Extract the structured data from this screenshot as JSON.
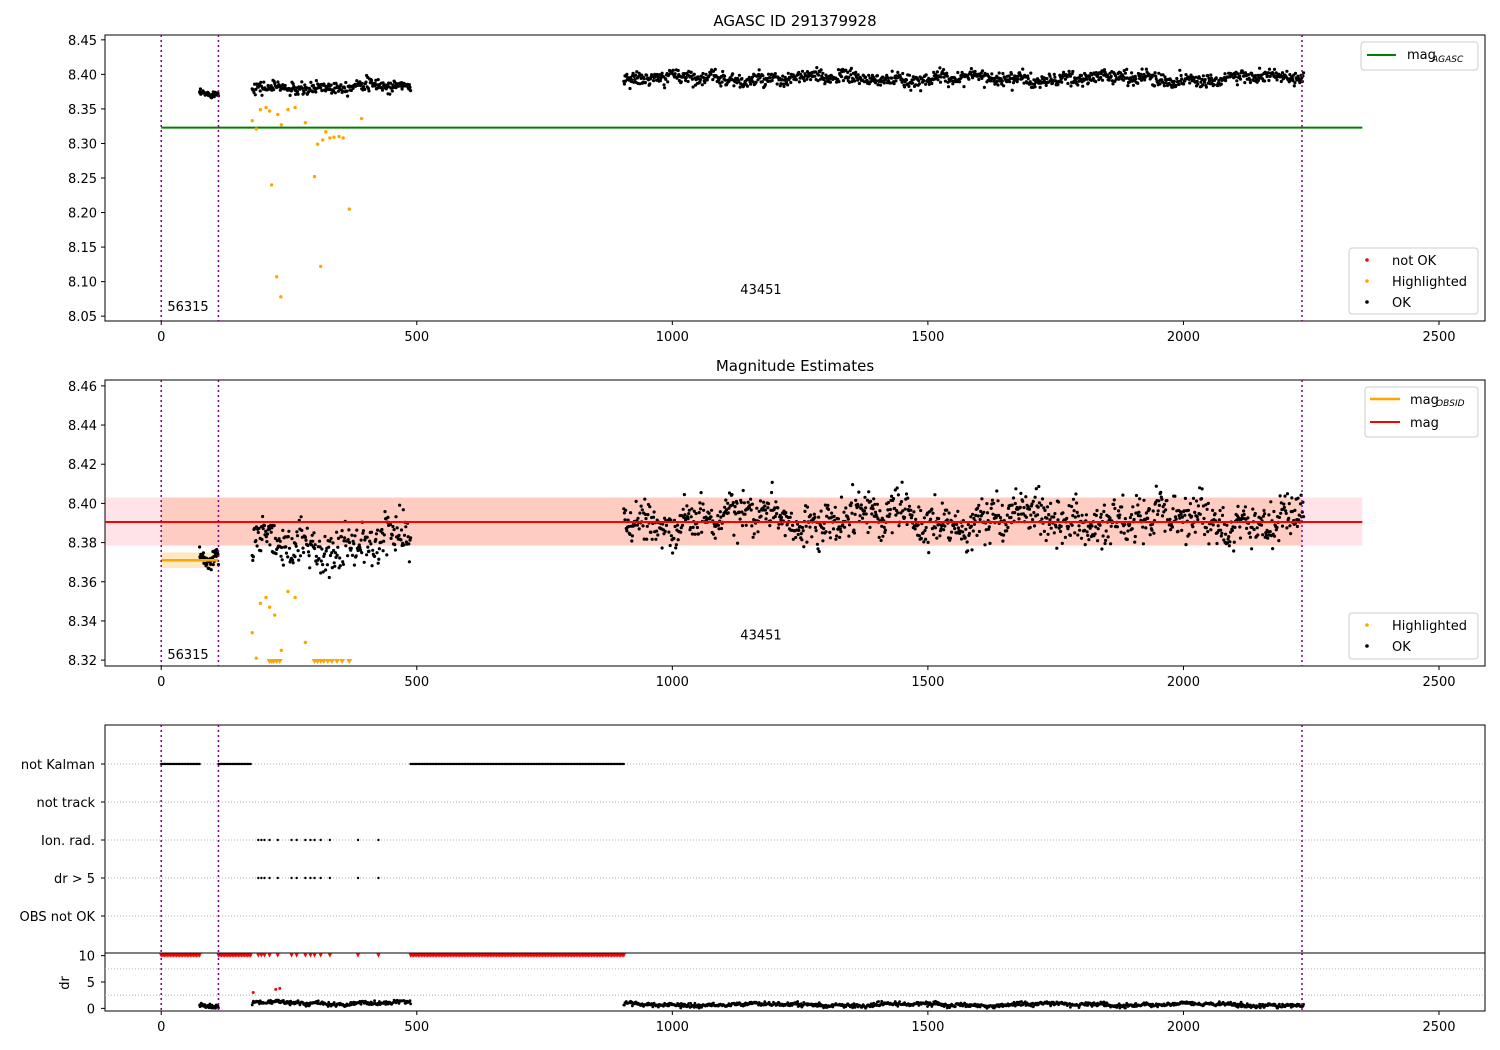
{
  "chart_data": [
    {
      "panel": "top",
      "type": "scatter",
      "title": "AGASC ID 291379928",
      "xlim": [
        -110,
        2590
      ],
      "ylim": [
        8.043,
        8.457
      ],
      "xticks": [
        0,
        500,
        1000,
        1500,
        2000,
        2500
      ],
      "yticks": [
        8.05,
        8.1,
        8.15,
        8.2,
        8.25,
        8.3,
        8.35,
        8.4,
        8.45
      ],
      "vlines": [
        0,
        112,
        2232
      ],
      "obsid_labels": [
        {
          "text": "56315",
          "x": 12,
          "y": 8.065
        },
        {
          "text": "43451",
          "x": 1133,
          "y": 8.089
        }
      ],
      "mag_agasc": 8.323,
      "mag_agasc_range": [
        0,
        2350
      ],
      "segments": [
        {
          "x": [
            75,
            112
          ],
          "mean": 8.371,
          "std": 0.005,
          "n": 45
        },
        {
          "x": [
            178,
            488
          ],
          "mean": 8.382,
          "std": 0.01,
          "n": 260
        },
        {
          "x": [
            905,
            2235
          ],
          "mean": 8.394,
          "std": 0.011,
          "n": 1100
        }
      ],
      "highlighted": [
        [
          178,
          8.333
        ],
        [
          186,
          8.321
        ],
        [
          194,
          8.349
        ],
        [
          205,
          8.352
        ],
        [
          212,
          8.347
        ],
        [
          216,
          8.24
        ],
        [
          226,
          8.107
        ],
        [
          228,
          8.342
        ],
        [
          234,
          8.078
        ],
        [
          235,
          8.327
        ],
        [
          248,
          8.349
        ],
        [
          262,
          8.352
        ],
        [
          282,
          8.33
        ],
        [
          300,
          8.252
        ],
        [
          306,
          8.299
        ],
        [
          312,
          8.122
        ],
        [
          316,
          8.305
        ],
        [
          322,
          8.317
        ],
        [
          330,
          8.308
        ],
        [
          338,
          8.309
        ],
        [
          348,
          8.31
        ],
        [
          356,
          8.308
        ],
        [
          368,
          8.205
        ],
        [
          392,
          8.336
        ]
      ],
      "legend_lines": [
        {
          "name": "mag",
          "sub": "AGASC",
          "color": "#008000"
        }
      ],
      "legend_points": [
        {
          "name": "not OK",
          "color": "#ff0000"
        },
        {
          "name": "Highlighted",
          "color": "#ffa500"
        },
        {
          "name": "OK",
          "color": "#000000"
        }
      ]
    },
    {
      "panel": "middle",
      "type": "scatter",
      "title": "Magnitude Estimates",
      "xlim": [
        -110,
        2590
      ],
      "ylim": [
        8.317,
        8.463
      ],
      "xticks": [
        0,
        500,
        1000,
        1500,
        2000,
        2500
      ],
      "yticks": [
        8.32,
        8.34,
        8.36,
        8.38,
        8.4,
        8.42,
        8.44,
        8.46
      ],
      "vlines": [
        0,
        112,
        2232
      ],
      "obsid_labels": [
        {
          "text": "56315",
          "x": 12,
          "y": 8.323
        },
        {
          "text": "43451",
          "x": 1133,
          "y": 8.333
        }
      ],
      "mag": 8.3905,
      "mag_band": [
        8.3785,
        8.403
      ],
      "mag_range": [
        -110,
        2350
      ],
      "mag_obsid": 8.371,
      "mag_obsid_band": [
        8.367,
        8.375
      ],
      "mag_obsid_range": [
        0,
        112
      ],
      "segments": [
        {
          "x": [
            75,
            112
          ],
          "mean": 8.371,
          "std": 0.005,
          "n": 45
        },
        {
          "x": [
            178,
            488
          ],
          "mean": 8.379,
          "std": 0.012,
          "n": 260
        },
        {
          "x": [
            905,
            2235
          ],
          "mean": 8.392,
          "std": 0.012,
          "n": 1100
        }
      ],
      "highlighted": [
        [
          178,
          8.334
        ],
        [
          186,
          8.321
        ],
        [
          194,
          8.349
        ],
        [
          205,
          8.352
        ],
        [
          212,
          8.347
        ],
        [
          222,
          8.343
        ],
        [
          235,
          8.325
        ],
        [
          248,
          8.355
        ],
        [
          262,
          8.352
        ],
        [
          282,
          8.329
        ]
      ],
      "clipped_x": [
        212,
        216,
        220,
        226,
        232,
        300,
        306,
        312,
        318,
        326,
        334,
        344,
        354,
        368
      ],
      "legend_lines": [
        {
          "name": "mag",
          "sub": "OBSID",
          "color": "#ffa500"
        },
        {
          "name": "mag",
          "sub": "",
          "color": "#ff0000"
        }
      ],
      "legend_points": [
        {
          "name": "Highlighted",
          "color": "#ffa500"
        },
        {
          "name": "OK",
          "color": "#000000"
        }
      ]
    },
    {
      "panel": "flags",
      "type": "scatter",
      "xlim": [
        -110,
        2590
      ],
      "categories": [
        "not Kalman",
        "not track",
        "Ion. rad.",
        "dr > 5",
        "OBS not OK"
      ],
      "not_kalman_ranges": [
        [
          0,
          75
        ],
        [
          112,
          175
        ],
        [
          488,
          905
        ]
      ],
      "ion_rad_x": [
        190,
        196,
        202,
        212,
        228,
        255,
        265,
        282,
        292,
        300,
        312,
        330,
        385,
        425
      ],
      "dr_gt5_x": [
        190,
        196,
        202,
        212,
        228,
        255,
        265,
        282,
        292,
        300,
        312,
        330,
        385,
        425
      ],
      "vlines": [
        0,
        112,
        2232
      ]
    },
    {
      "panel": "dr",
      "type": "scatter",
      "ylabel": "dr",
      "xlim": [
        -110,
        2590
      ],
      "ylim": [
        -0.5,
        10.5
      ],
      "yticks": [
        0,
        5,
        10
      ],
      "xticks": [
        0,
        500,
        1000,
        1500,
        2000,
        2500
      ],
      "not_ok_ranges": [
        [
          0,
          75
        ],
        [
          112,
          175
        ],
        [
          488,
          905
        ]
      ],
      "not_ok_x": [
        190,
        196,
        202,
        212,
        228,
        255,
        265,
        282,
        292,
        300,
        312,
        330,
        385,
        425
      ],
      "dr_red": [
        [
          180,
          3.0
        ],
        [
          224,
          3.6
        ],
        [
          232,
          3.8
        ]
      ],
      "segments": [
        {
          "x": [
            75,
            112
          ],
          "mean": 0.3,
          "n": 45
        },
        {
          "x": [
            178,
            488
          ],
          "mean": 1.0,
          "n": 260
        },
        {
          "x": [
            905,
            2235
          ],
          "mean": 0.7,
          "n": 1100
        }
      ],
      "vlines": [
        0,
        112,
        2232
      ]
    }
  ]
}
